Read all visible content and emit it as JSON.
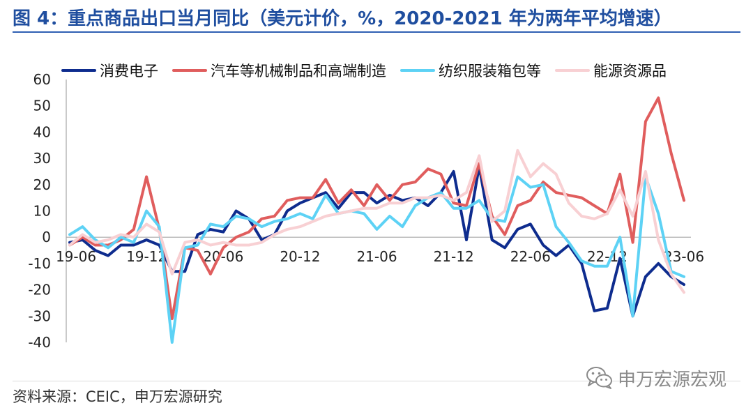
{
  "chart_data": {
    "type": "line",
    "title": "图 4：重点商品出口当月同比（美元计价，%，2020-2021 年为两年平均增速）",
    "legend": "top",
    "grid": false,
    "ylim": [
      -40,
      60
    ],
    "yticks": [
      60,
      50,
      40,
      30,
      20,
      10,
      0,
      -10,
      -20,
      -30,
      -40
    ],
    "x_ticks": [
      "19-06",
      "19-12",
      "20-06",
      "20-12",
      "21-06",
      "21-12",
      "22-06",
      "22-12",
      "23-06"
    ],
    "x": [
      "19-06",
      "19-07",
      "19-08",
      "19-09",
      "19-10",
      "19-11",
      "19-12",
      "20-01",
      "20-02",
      "20-03",
      "20-04",
      "20-05",
      "20-06",
      "20-07",
      "20-08",
      "20-09",
      "20-10",
      "20-11",
      "20-12",
      "21-01",
      "21-02",
      "21-03",
      "21-04",
      "21-05",
      "21-06",
      "21-07",
      "21-08",
      "21-09",
      "21-10",
      "21-11",
      "21-12",
      "22-01",
      "22-02",
      "22-03",
      "22-04",
      "22-05",
      "22-06",
      "22-07",
      "22-08",
      "22-09",
      "22-10",
      "22-11",
      "22-12",
      "23-01",
      "23-02",
      "23-03",
      "23-04",
      "23-05",
      "23-06"
    ],
    "series": [
      {
        "name": "消费电子",
        "color": "#0e2c8e",
        "values": [
          -2,
          -1,
          -5,
          -7,
          -3,
          -3,
          -1,
          -3,
          -13,
          -13,
          1,
          3,
          2,
          10,
          7,
          -1,
          1,
          10,
          13,
          15,
          17,
          11,
          17,
          17,
          13,
          16,
          14,
          15,
          12,
          17,
          25,
          -1,
          27,
          -1,
          -4,
          3,
          5,
          -3,
          -7,
          -3,
          -10,
          -28,
          -27,
          -8,
          -30,
          -15,
          -10,
          -15,
          -18
        ]
      },
      {
        "name": "汽车等机械制品和高端制造",
        "color": "#e05d5d",
        "values": [
          -3,
          0,
          -3,
          -3,
          -1,
          3,
          23,
          3,
          -31,
          -4,
          -5,
          -14,
          -4,
          0,
          2,
          7,
          8,
          14,
          15,
          15,
          22,
          13,
          18,
          12,
          20,
          14,
          20,
          21,
          26,
          24,
          13,
          12,
          28,
          8,
          1,
          12,
          14,
          21,
          17,
          16,
          15,
          12,
          9,
          24,
          -2,
          44,
          53,
          32,
          14
        ]
      },
      {
        "name": "纺织服装箱包等",
        "color": "#5dd2f5",
        "values": [
          1,
          4,
          -1,
          -4,
          0,
          -2,
          10,
          4,
          -40,
          -4,
          -3,
          5,
          4,
          8,
          7,
          4,
          6,
          7,
          9,
          7,
          16,
          9,
          10,
          9,
          3,
          8,
          4,
          12,
          15,
          17,
          11,
          11,
          14,
          7,
          6,
          23,
          19,
          20,
          4,
          -2,
          -9,
          -11,
          -11,
          0,
          -30,
          23,
          9,
          -13,
          -15
        ]
      },
      {
        "name": "能源资源品",
        "color": "#f8d0d3",
        "values": [
          -3,
          1,
          -2,
          -1,
          1,
          0,
          5,
          2,
          -14,
          -2,
          -1,
          -3,
          -2,
          -3,
          -3,
          -2,
          1,
          3,
          4,
          6,
          8,
          9,
          10,
          11,
          11,
          13,
          13,
          15,
          15,
          16,
          14,
          17,
          31,
          6,
          10,
          33,
          23,
          28,
          24,
          13,
          8,
          7,
          9,
          18,
          8,
          25,
          -1,
          -14,
          -21
        ]
      }
    ]
  },
  "source": "资料来源：CEIC，申万宏源研究",
  "watermark": {
    "text": "申万宏源宏观",
    "icon": "wechat-icon"
  },
  "colors": {
    "title": "#1f4e9f",
    "title_rule": "#2f5fb3",
    "axis": "#a6a6a6",
    "tick_text": "#222222",
    "watermark": "#8a8a8a"
  }
}
